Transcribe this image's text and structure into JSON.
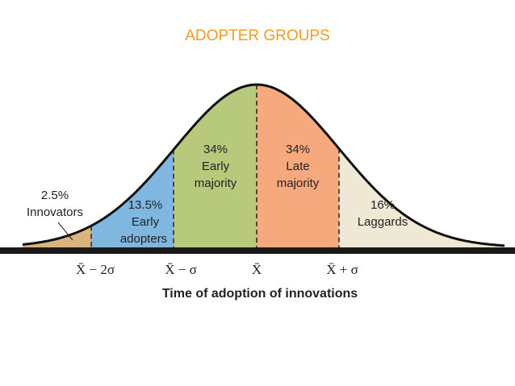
{
  "title": "ADOPTER GROUPS",
  "segments": [
    {
      "percent": "2.5%",
      "label": [
        "Innovators"
      ]
    },
    {
      "percent": "13.5%",
      "label": [
        "Early",
        "adopters"
      ]
    },
    {
      "percent": "34%",
      "label": [
        "Early",
        "majority"
      ]
    },
    {
      "percent": "34%",
      "label": [
        "Late",
        "majority"
      ]
    },
    {
      "percent": "16%",
      "label": [
        "Laggards"
      ]
    }
  ],
  "axis_labels": [
    "X̄ − 2σ",
    "X̄ − σ",
    "X̄",
    "X̄ + σ"
  ],
  "axis_title": "Time of adoption of innovations"
}
